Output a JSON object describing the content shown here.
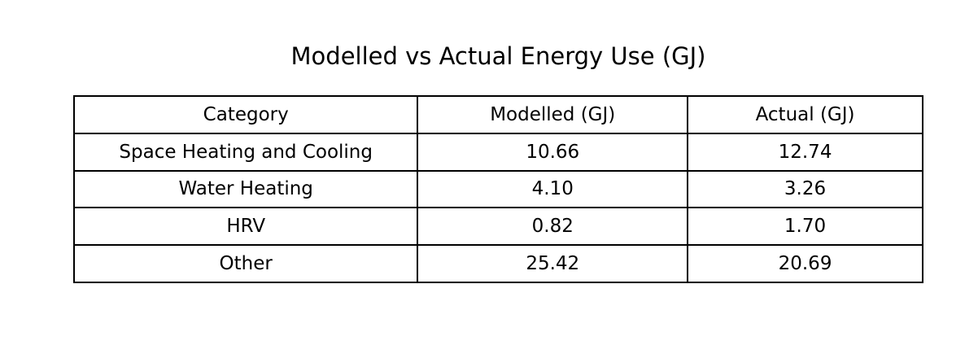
{
  "chart_data": {
    "type": "table",
    "title": "Modelled vs Actual Energy Use (GJ)",
    "columns": [
      "Category",
      "Modelled (GJ)",
      "Actual (GJ)"
    ],
    "rows": [
      [
        "Space Heating and Cooling",
        "10.66",
        "12.74"
      ],
      [
        "Water Heating",
        "4.10",
        "3.26"
      ],
      [
        "HRV",
        "0.82",
        "1.70"
      ],
      [
        "Other",
        "25.42",
        "20.69"
      ]
    ],
    "layout": {
      "grid": "on",
      "cell_alignment": "center"
    },
    "colors": {
      "border": "#000000",
      "background": "#ffffff",
      "text": "#000000"
    }
  }
}
